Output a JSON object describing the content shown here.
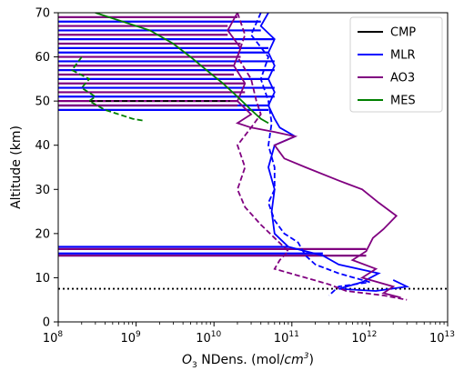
{
  "chart_data": {
    "type": "line",
    "xlabel": "O3 NDens. (mol/cm3)",
    "ylabel": "Altitude (km)",
    "xscale": "log",
    "xlim": [
      100000000.0,
      10000000000000.0
    ],
    "ylim": [
      0,
      70
    ],
    "x_ticks": [
      100000000.0,
      1000000000.0,
      10000000000.0,
      100000000000.0,
      1000000000000.0,
      10000000000000.0
    ],
    "x_tick_labels": [
      [
        "10",
        "8"
      ],
      [
        "10",
        "9"
      ],
      [
        "10",
        "10"
      ],
      [
        "10",
        "11"
      ],
      [
        "10",
        "12"
      ],
      [
        "10",
        "13"
      ]
    ],
    "y_ticks": [
      0,
      10,
      20,
      30,
      40,
      50,
      60,
      70
    ],
    "y_tick_labels": [
      "0",
      "10",
      "20",
      "30",
      "40",
      "50",
      "60",
      "70"
    ],
    "legend_position": "top-right",
    "grid": false,
    "reference_lines": [
      {
        "type": "horizontal",
        "y": 7.5,
        "style": "dotted",
        "color": "#000000"
      },
      {
        "type": "horizontal",
        "y": 50,
        "style": "dashed",
        "color": "#000000",
        "x_range": [
          250000000.0,
          16000000000.0
        ]
      }
    ],
    "series": [
      {
        "name": "CMP",
        "color": "#000000",
        "points": []
      },
      {
        "name": "MLR",
        "color": "#0000ff",
        "solid": [
          [
            50000000000.0,
            70
          ],
          [
            40000000000.0,
            67
          ],
          [
            60000000000.0,
            64
          ],
          [
            50000000000.0,
            61
          ],
          [
            60000000000.0,
            58
          ],
          [
            50000000000.0,
            55
          ],
          [
            60000000000.0,
            52
          ],
          [
            50000000000.0,
            49
          ],
          [
            60000000000.0,
            46
          ],
          [
            70000000000.0,
            44
          ],
          [
            110000000000.0,
            42
          ],
          [
            60000000000.0,
            40
          ],
          [
            50000000000.0,
            35
          ],
          [
            60000000000.0,
            30
          ],
          [
            55000000000.0,
            25
          ],
          [
            60000000000.0,
            20
          ],
          [
            90000000000.0,
            17
          ],
          [
            250000000000.0,
            15
          ],
          [
            400000000000.0,
            13
          ],
          [
            1300000000000.0,
            11
          ],
          [
            800000000000.0,
            9
          ],
          [
            400000000000.0,
            7.5
          ],
          [
            1200000000000.0,
            7
          ],
          [
            3000000000000.0,
            8
          ],
          [
            2000000000000.0,
            9.5
          ]
        ],
        "dashed": [
          [
            40000000000.0,
            70
          ],
          [
            30000000000.0,
            65
          ],
          [
            50000000000.0,
            60
          ],
          [
            40000000000.0,
            55
          ],
          [
            50000000000.0,
            50
          ],
          [
            55000000000.0,
            45
          ],
          [
            50000000000.0,
            40
          ],
          [
            60000000000.0,
            35
          ],
          [
            60000000000.0,
            30
          ],
          [
            50000000000.0,
            27
          ],
          [
            60000000000.0,
            23
          ],
          [
            80000000000.0,
            20
          ],
          [
            120000000000.0,
            18
          ],
          [
            150000000000.0,
            15
          ],
          [
            200000000000.0,
            13
          ],
          [
            400000000000.0,
            11
          ],
          [
            1000000000000.0,
            9
          ],
          [
            400000000000.0,
            8
          ],
          [
            300000000000.0,
            6
          ]
        ]
      },
      {
        "name": "AO3",
        "color": "#800080",
        "solid": [
          [
            20000000000.0,
            70
          ],
          [
            15000000000.0,
            66
          ],
          [
            22000000000.0,
            62
          ],
          [
            18000000000.0,
            58
          ],
          [
            25000000000.0,
            54
          ],
          [
            20000000000.0,
            50
          ],
          [
            30000000000.0,
            47
          ],
          [
            20000000000.0,
            45
          ],
          [
            30000000000.0,
            44
          ],
          [
            60000000000.0,
            43
          ],
          [
            110000000000.0,
            42
          ],
          [
            60000000000.0,
            40
          ],
          [
            80000000000.0,
            37
          ],
          [
            150000000000.0,
            35
          ],
          [
            400000000000.0,
            32
          ],
          [
            800000000000.0,
            30
          ],
          [
            1300000000000.0,
            27
          ],
          [
            2200000000000.0,
            24
          ],
          [
            1500000000000.0,
            21
          ],
          [
            1100000000000.0,
            19
          ],
          [
            900000000000.0,
            16
          ],
          [
            600000000000.0,
            14
          ],
          [
            1200000000000.0,
            12
          ],
          [
            800000000000.0,
            10
          ],
          [
            2000000000000.0,
            8
          ],
          [
            1500000000000.0,
            6.5
          ],
          [
            2500000000000.0,
            5.5
          ]
        ],
        "dashed": [
          [
            20000000000.0,
            70
          ],
          [
            25000000000.0,
            65
          ],
          [
            20000000000.0,
            60
          ],
          [
            30000000000.0,
            55
          ],
          [
            35000000000.0,
            50
          ],
          [
            40000000000.0,
            47
          ],
          [
            30000000000.0,
            44
          ],
          [
            20000000000.0,
            40
          ],
          [
            25000000000.0,
            35
          ],
          [
            20000000000.0,
            30
          ],
          [
            25000000000.0,
            26
          ],
          [
            40000000000.0,
            22
          ],
          [
            60000000000.0,
            19
          ],
          [
            90000000000.0,
            16
          ],
          [
            70000000000.0,
            14
          ],
          [
            60000000000.0,
            12
          ],
          [
            150000000000.0,
            10
          ],
          [
            300000000000.0,
            8.5
          ],
          [
            500000000000.0,
            7
          ],
          [
            1500000000000.0,
            6
          ],
          [
            3000000000000.0,
            5
          ]
        ]
      },
      {
        "name": "MES",
        "color": "#008000",
        "solid": [
          [
            300000000.0,
            70
          ],
          [
            1500000000.0,
            66
          ],
          [
            3000000000.0,
            63
          ],
          [
            5000000000.0,
            60
          ],
          [
            8000000000.0,
            57
          ],
          [
            13000000000.0,
            54
          ],
          [
            20000000000.0,
            51
          ],
          [
            30000000000.0,
            48
          ],
          [
            40000000000.0,
            46
          ],
          [
            50000000000.0,
            45
          ]
        ],
        "dashed": [
          [
            200000000.0,
            60
          ],
          [
            150000000.0,
            57
          ],
          [
            250000000.0,
            55
          ],
          [
            200000000.0,
            53
          ],
          [
            300000000.0,
            51
          ],
          [
            250000000.0,
            50
          ],
          [
            400000000.0,
            48
          ],
          [
            600000000.0,
            47
          ],
          [
            900000000.0,
            46
          ],
          [
            1300000000.0,
            45.5
          ]
        ]
      }
    ],
    "spikes": [
      {
        "series": "MLR",
        "alt": [
          68,
          66,
          64,
          62,
          61,
          59,
          57,
          55,
          53,
          51,
          49,
          48,
          17,
          15.5
        ],
        "x_left": 100000000.0
      },
      {
        "series": "AO3",
        "alt": [
          69,
          67,
          65,
          63,
          60,
          58,
          56,
          54,
          52,
          50,
          49,
          16.5,
          15
        ],
        "x_left": 100000000.0
      }
    ]
  }
}
